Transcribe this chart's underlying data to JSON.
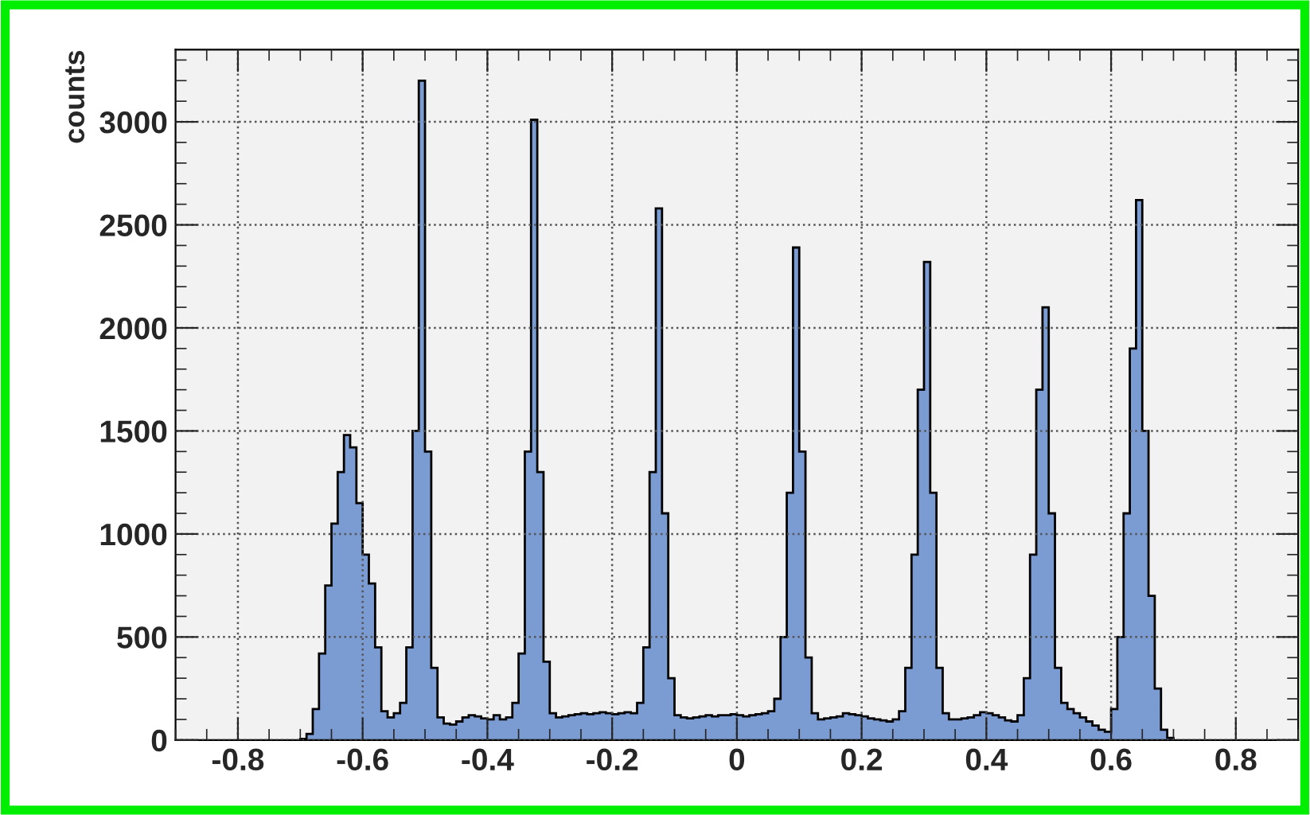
{
  "chart_data": {
    "type": "histogram",
    "ylabel": "counts",
    "color": "#7b9bd3",
    "bins": [
      -0.7,
      -0.69,
      -0.68,
      -0.67,
      -0.66,
      -0.65,
      -0.64,
      -0.63,
      -0.62,
      -0.61,
      -0.6,
      -0.59,
      -0.58,
      -0.57,
      -0.56,
      -0.55,
      -0.54,
      -0.53,
      -0.52,
      -0.51,
      -0.5,
      -0.49,
      -0.48,
      -0.47,
      -0.46,
      -0.45,
      -0.44,
      -0.43,
      -0.42,
      -0.41,
      -0.4,
      -0.39,
      -0.38,
      -0.37,
      -0.36,
      -0.35,
      -0.34,
      -0.33,
      -0.32,
      -0.31,
      -0.3,
      -0.29,
      -0.28,
      -0.27,
      -0.26,
      -0.25,
      -0.24,
      -0.23,
      -0.22,
      -0.21,
      -0.2,
      -0.19,
      -0.18,
      -0.17,
      -0.16,
      -0.15,
      -0.14,
      -0.13,
      -0.12,
      -0.11,
      -0.1,
      -0.09,
      -0.08,
      -0.07,
      -0.06,
      -0.05,
      -0.04,
      -0.03,
      -0.02,
      -0.01,
      0,
      0.01,
      0.02,
      0.03,
      0.04,
      0.05,
      0.06,
      0.07,
      0.08,
      0.09,
      0.1,
      0.11,
      0.12,
      0.13,
      0.14,
      0.15,
      0.16,
      0.17,
      0.18,
      0.19,
      0.2,
      0.21,
      0.22,
      0.23,
      0.24,
      0.25,
      0.26,
      0.27,
      0.28,
      0.29,
      0.3,
      0.31,
      0.32,
      0.33,
      0.34,
      0.35,
      0.36,
      0.37,
      0.38,
      0.39,
      0.4,
      0.41,
      0.42,
      0.43,
      0.44,
      0.45,
      0.46,
      0.47,
      0.48,
      0.49,
      0.5,
      0.51,
      0.52,
      0.53,
      0.54,
      0.55,
      0.56,
      0.57,
      0.58,
      0.59,
      0.6,
      0.61,
      0.62,
      0.63,
      0.64,
      0.65,
      0.66,
      0.67,
      0.68,
      0.69,
      0.7
    ],
    "values": [
      5,
      30,
      150,
      420,
      750,
      1050,
      1300,
      1480,
      1420,
      1150,
      900,
      760,
      450,
      140,
      110,
      130,
      180,
      450,
      1500,
      3200,
      1400,
      350,
      110,
      80,
      75,
      90,
      110,
      120,
      115,
      105,
      100,
      120,
      100,
      110,
      180,
      420,
      1400,
      3010,
      1300,
      380,
      130,
      110,
      115,
      120,
      125,
      130,
      125,
      130,
      135,
      130,
      125,
      130,
      135,
      130,
      180,
      450,
      1300,
      2580,
      1100,
      300,
      120,
      110,
      105,
      110,
      115,
      120,
      115,
      120,
      120,
      125,
      120,
      115,
      120,
      125,
      130,
      140,
      200,
      500,
      1200,
      2390,
      1400,
      400,
      130,
      100,
      105,
      110,
      115,
      130,
      125,
      120,
      115,
      105,
      100,
      95,
      90,
      100,
      140,
      350,
      900,
      1700,
      2320,
      1200,
      350,
      130,
      100,
      100,
      105,
      110,
      120,
      135,
      130,
      120,
      110,
      95,
      90,
      120,
      300,
      900,
      1700,
      2100,
      1100,
      350,
      180,
      150,
      130,
      110,
      90,
      70,
      50,
      40,
      150,
      500,
      1100,
      1900,
      2620,
      1500,
      700,
      250,
      50,
      10
    ],
    "xlim": [
      -0.9,
      0.9
    ],
    "xticks": [
      -0.8,
      -0.6,
      -0.4,
      -0.2,
      0,
      0.2,
      0.4,
      0.6,
      0.8
    ],
    "ylim": [
      0,
      3350
    ],
    "yticks": [
      0,
      500,
      1000,
      1500,
      2000,
      2500,
      3000
    ],
    "grid": true,
    "line_style": "dotted"
  }
}
